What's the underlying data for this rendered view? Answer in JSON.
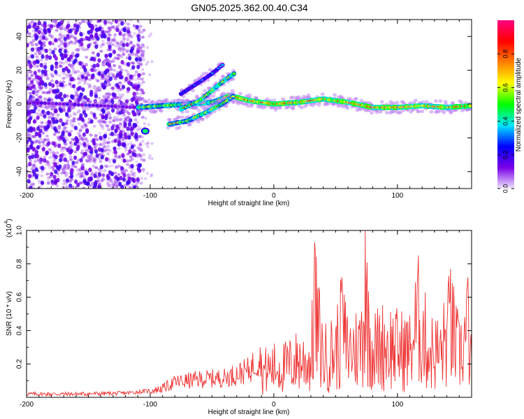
{
  "title": "GN05.2025.362.00.40.C34",
  "chart_data": [
    {
      "type": "heatmap",
      "title": "GN05.2025.362.00.40.C34",
      "xlabel": "Height of straight line (km)",
      "ylabel": "Frequency (Hz)",
      "xlim": [
        -200,
        160
      ],
      "ylim": [
        -50,
        50
      ],
      "xticks": [
        -200,
        -100,
        0,
        100
      ],
      "yticks": [
        -40,
        -20,
        0,
        20,
        40
      ],
      "colorbar": {
        "label": "Normalized spectral amplitude",
        "range": [
          0,
          1
        ],
        "ticks": [
          0.0,
          0.2,
          0.4,
          0.6,
          0.8
        ],
        "tick_labels": [
          "0.0",
          "0.2",
          "0.4",
          "0.6",
          "0.8"
        ],
        "colors": [
          "#f0e6ff",
          "#7a00e6",
          "#0000ff",
          "#00e6ff",
          "#00ff00",
          "#ffff00",
          "#ff8000",
          "#ff0000",
          "#ff0080"
        ]
      },
      "main_ridge": [
        {
          "x": -200,
          "y": 1
        },
        {
          "x": -170,
          "y": 0
        },
        {
          "x": -140,
          "y": -1
        },
        {
          "x": -110,
          "y": -2
        },
        {
          "x": -90,
          "y": -1
        },
        {
          "x": -70,
          "y": 0
        },
        {
          "x": -50,
          "y": 1
        },
        {
          "x": -35,
          "y": 5
        },
        {
          "x": -20,
          "y": 2
        },
        {
          "x": 0,
          "y": 0
        },
        {
          "x": 20,
          "y": 1
        },
        {
          "x": 40,
          "y": 3
        },
        {
          "x": 60,
          "y": 1
        },
        {
          "x": 80,
          "y": -2
        },
        {
          "x": 100,
          "y": -2
        },
        {
          "x": 120,
          "y": -1
        },
        {
          "x": 140,
          "y": -2
        },
        {
          "x": 160,
          "y": -1
        }
      ],
      "branch_upper": [
        {
          "x": -75,
          "y": 6
        },
        {
          "x": -60,
          "y": 13
        },
        {
          "x": -50,
          "y": 18
        },
        {
          "x": -40,
          "y": 24
        }
      ],
      "branch_middle": [
        {
          "x": -75,
          "y": -3
        },
        {
          "x": -60,
          "y": 2
        },
        {
          "x": -50,
          "y": 8
        },
        {
          "x": -40,
          "y": 14
        },
        {
          "x": -32,
          "y": 18
        }
      ],
      "branch_lower": [
        {
          "x": -85,
          "y": -12
        },
        {
          "x": -70,
          "y": -10
        },
        {
          "x": -55,
          "y": -5
        },
        {
          "x": -42,
          "y": 0
        },
        {
          "x": -32,
          "y": 5
        }
      ]
    },
    {
      "type": "line",
      "xlabel": "Height of straight line (km)",
      "ylabel": "SNR (10 * v/v)",
      "scale_label": "(x10",
      "scale_exp": "4",
      "scale_close": ")",
      "xlim": [
        -200,
        160
      ],
      "ylim": [
        0,
        1.0
      ],
      "xticks": [
        -200,
        -100,
        0,
        100
      ],
      "yticks": [
        0.2,
        0.4,
        0.6,
        0.8,
        1.0
      ],
      "ytick_labels": [
        "0.2",
        "0.4",
        "0.6",
        "0.8",
        "1.0"
      ],
      "color": "#ee3333",
      "series": [
        {
          "name": "SNR",
          "points": [
            {
              "x": -200,
              "y": 0.02
            },
            {
              "x": -160,
              "y": 0.02
            },
            {
              "x": -120,
              "y": 0.025
            },
            {
              "x": -100,
              "y": 0.04
            },
            {
              "x": -90,
              "y": 0.06
            },
            {
              "x": -80,
              "y": 0.1
            },
            {
              "x": -60,
              "y": 0.12
            },
            {
              "x": -40,
              "y": 0.13
            },
            {
              "x": -20,
              "y": 0.18
            },
            {
              "x": -10,
              "y": 0.28
            },
            {
              "x": 0,
              "y": 0.32
            },
            {
              "x": 10,
              "y": 0.33
            },
            {
              "x": 20,
              "y": 0.4
            },
            {
              "x": 30,
              "y": 0.38
            },
            {
              "x": 33,
              "y": 0.93
            },
            {
              "x": 40,
              "y": 0.42
            },
            {
              "x": 50,
              "y": 0.5
            },
            {
              "x": 55,
              "y": 0.72
            },
            {
              "x": 60,
              "y": 0.5
            },
            {
              "x": 70,
              "y": 0.55
            },
            {
              "x": 74,
              "y": 1.0
            },
            {
              "x": 80,
              "y": 0.5
            },
            {
              "x": 90,
              "y": 0.58
            },
            {
              "x": 100,
              "y": 0.52
            },
            {
              "x": 110,
              "y": 0.5
            },
            {
              "x": 117,
              "y": 0.85
            },
            {
              "x": 125,
              "y": 0.5
            },
            {
              "x": 135,
              "y": 0.48
            },
            {
              "x": 143,
              "y": 0.77
            },
            {
              "x": 150,
              "y": 0.45
            },
            {
              "x": 157,
              "y": 0.72
            },
            {
              "x": 160,
              "y": 0.3
            }
          ]
        }
      ]
    }
  ]
}
